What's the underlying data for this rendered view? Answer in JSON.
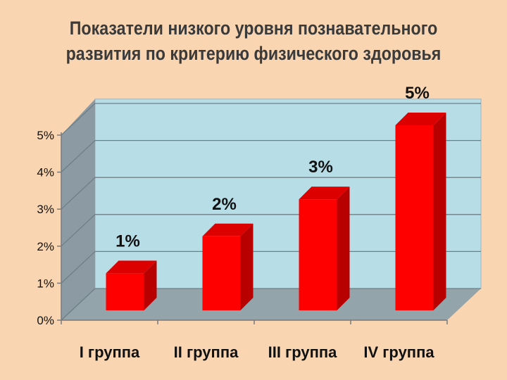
{
  "colors": {
    "background": "#f9d5b1",
    "plot_back_wall": "#b7dde7",
    "plot_side_wall": "#8c9aa3",
    "plot_floor": "#93a4ab",
    "bar_front": "#ff0000",
    "bar_side": "#b80000",
    "bar_top": "#dd0000"
  },
  "chart_data": {
    "type": "bar",
    "style": "3d-column",
    "title": "Показатели низкого уровня познавательного развития по критерию физического здоровья",
    "categories": [
      "I группа",
      "II группа",
      "III группа",
      "IV группа"
    ],
    "values": [
      1,
      2,
      3,
      5
    ],
    "data_labels": [
      "1%",
      "2%",
      "3%",
      "5%"
    ],
    "y_ticks": [
      "0%",
      "1%",
      "2%",
      "3%",
      "4%",
      "5%"
    ],
    "ylim": [
      0,
      5
    ],
    "y_unit": "%",
    "grid": true,
    "legend": "none"
  }
}
